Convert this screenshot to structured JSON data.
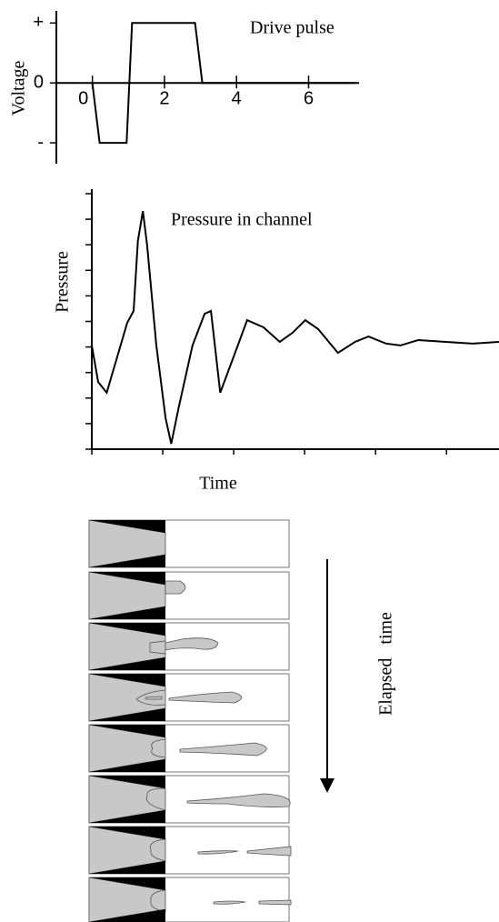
{
  "chart_data": [
    {
      "type": "line",
      "title": "Drive pulse",
      "y_label": "Voltage",
      "color": "#000000",
      "x": [
        0,
        0.2,
        0.95,
        1.1,
        2.85,
        3.05,
        7.3
      ],
      "values": [
        0,
        -1,
        -1,
        1,
        1,
        0,
        0
      ],
      "xlim": [
        -1,
        7.4
      ],
      "ylim": [
        -1.15,
        1.05
      ],
      "xticks": [
        0,
        2,
        4,
        6
      ],
      "yticks": [
        {
          "value": 1,
          "label": "+"
        },
        0,
        {
          "value": -1,
          "label": "-"
        }
      ]
    },
    {
      "type": "line",
      "title": "Pressure in channel",
      "y_label": "Pressure",
      "x_label": "Time",
      "color": "#000000",
      "x": [
        0,
        0.09,
        0.21,
        0.33,
        0.5,
        0.59,
        0.65,
        0.72,
        0.78,
        0.91,
        1.04,
        1.12,
        1.22,
        1.42,
        1.59,
        1.68,
        1.81,
        2.01,
        2.19,
        2.42,
        2.65,
        2.83,
        3.01,
        3.19,
        3.47,
        3.71,
        3.9,
        4.15,
        4.35,
        4.6,
        4.99,
        5.37,
        5.74
      ],
      "values": [
        4.06,
        2.63,
        2.21,
        3.35,
        4.95,
        5.41,
        8.15,
        9.32,
        7.97,
        4.06,
        1.21,
        0.21,
        1.57,
        4.06,
        5.3,
        5.41,
        2.21,
        3.7,
        5.05,
        4.77,
        4.2,
        4.56,
        5.05,
        4.7,
        3.77,
        4.2,
        4.41,
        4.13,
        4.06,
        4.27,
        4.2,
        4.13,
        4.2
      ],
      "xlim": [
        0,
        5.74
      ],
      "ylim": [
        0,
        10
      ],
      "xticks": [
        0,
        1,
        2,
        3,
        4,
        5
      ],
      "yticks": [
        0,
        1,
        2,
        3,
        4,
        5,
        6,
        7,
        8,
        9,
        10
      ]
    }
  ],
  "diagram": {
    "label": "Elapsed   time"
  }
}
